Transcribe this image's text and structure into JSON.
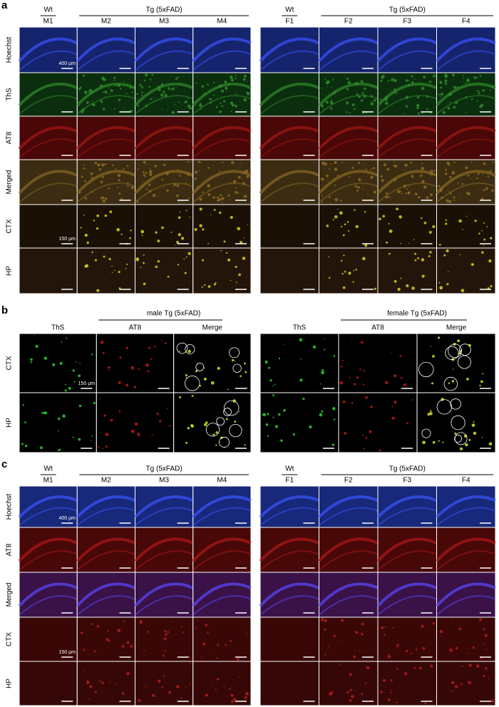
{
  "panels": [
    {
      "letter": "a",
      "type": "grid",
      "groups": [
        {
          "wt": "Wt",
          "tg": "Tg (5xFAD)",
          "columns": [
            "M1",
            "M2",
            "M3",
            "M4"
          ]
        },
        {
          "wt": "Wt",
          "tg": "Tg (5xFAD)",
          "columns": [
            "F1",
            "F2",
            "F3",
            "F4"
          ]
        }
      ],
      "rows": [
        {
          "label": "Hoechst",
          "color": "#1f3fe0",
          "tone": "#16246e",
          "accent": "#3a55ff"
        },
        {
          "label": "ThS",
          "color": "#1a9a1a",
          "tone": "#0b2e0e",
          "accent": "#2f8a2a"
        },
        {
          "label": "AT8",
          "color": "#e01010",
          "tone": "#4a0707",
          "accent": "#a01a12"
        },
        {
          "label": "Merged",
          "color": "#000000",
          "tone": "#3b2c12",
          "accent": "#8a6a22"
        },
        {
          "label": "CTX",
          "color": "#000000",
          "tone": "#1a1006",
          "accent": "#d8d020"
        },
        {
          "label": "HP",
          "color": "#000000",
          "tone": "#24150a",
          "accent": "#d8d020"
        }
      ],
      "scale_bars": [
        "400 µm",
        "150 µm"
      ]
    },
    {
      "letter": "b",
      "type": "comparison",
      "groups": [
        {
          "title": "male Tg (5xFAD)",
          "columns": [
            {
              "label": "ThS",
              "color": "#1a9a1a"
            },
            {
              "label": "AT8",
              "color": "#e01010"
            },
            {
              "label": "Merge",
              "color": "#000000"
            }
          ]
        },
        {
          "title": "female Tg (5xFAD)",
          "columns": [
            {
              "label": "ThS",
              "color": "#1a9a1a"
            },
            {
              "label": "AT8",
              "color": "#e01010"
            },
            {
              "label": "Merge",
              "color": "#000000"
            }
          ]
        }
      ],
      "rows": [
        "CTX",
        "HP"
      ],
      "scale_bar": "150 µm"
    },
    {
      "letter": "c",
      "type": "grid",
      "groups": [
        {
          "wt": "Wt",
          "tg": "Tg (5xFAD)",
          "columns": [
            "M1",
            "M2",
            "M3",
            "M4"
          ]
        },
        {
          "wt": "Wt",
          "tg": "Tg (5xFAD)",
          "columns": [
            "F1",
            "F2",
            "F3",
            "F4"
          ]
        }
      ],
      "rows": [
        {
          "label": "Hoechst",
          "color": "#1f3fe0",
          "tone": "#18287a",
          "accent": "#3a55ff"
        },
        {
          "label": "AT8",
          "color": "#e01010",
          "tone": "#480808",
          "accent": "#b01818"
        },
        {
          "label": "Merged",
          "color": "#000000",
          "tone": "#3a1248",
          "accent": "#5a4aff"
        },
        {
          "label": "CTX",
          "color": "#000000",
          "tone": "#3a0707",
          "accent": "#b01c1c"
        },
        {
          "label": "HP",
          "color": "#000000",
          "tone": "#360707",
          "accent": "#b01c1c"
        }
      ],
      "scale_bars": [
        "400 µm",
        "150 µm"
      ]
    }
  ]
}
